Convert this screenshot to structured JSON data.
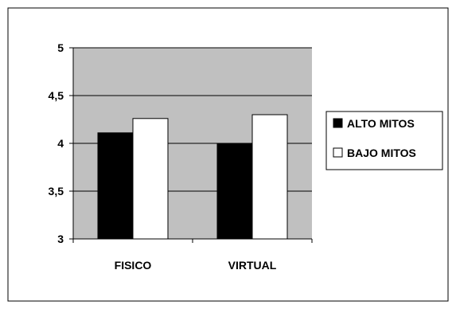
{
  "chart_data": {
    "type": "bar",
    "categories": [
      "FISICO",
      "VIRTUAL"
    ],
    "series": [
      {
        "name": "ALTO MITOS",
        "values": [
          4.11,
          4.0
        ],
        "color": "#000000"
      },
      {
        "name": "BAJO MITOS",
        "values": [
          4.26,
          4.3
        ],
        "color": "#ffffff"
      }
    ],
    "ylim": [
      3,
      5
    ],
    "yticks": [
      3,
      3.5,
      4,
      4.5,
      5
    ],
    "ytick_labels": [
      "3",
      "3,5",
      "4",
      "4,5",
      "5"
    ],
    "title": "",
    "xlabel": "",
    "ylabel": "",
    "grid": true,
    "legend": "right",
    "plot_background": "#c0c0c0"
  }
}
